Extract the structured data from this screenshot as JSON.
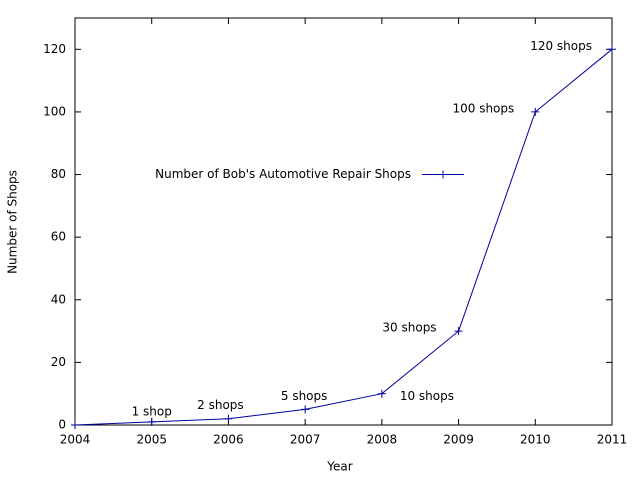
{
  "chart_data": {
    "type": "line",
    "x_label": "Year",
    "y_label": "Number of Shops",
    "x": [
      2004,
      2005,
      2006,
      2007,
      2008,
      2009,
      2010,
      2011
    ],
    "series": [
      {
        "name": "Number of Bob's Automotive Repair Shops",
        "color": "#0000a0",
        "values": [
          0,
          1,
          2,
          5,
          10,
          30,
          100,
          120
        ],
        "value_labels": [
          null,
          "1 shop",
          "2 shops",
          "5 shops",
          "10 shops",
          "30 shops",
          "100 shops",
          "120 shops"
        ]
      }
    ],
    "xlim": [
      2004,
      2011
    ],
    "xticks": [
      2004,
      2005,
      2006,
      2007,
      2008,
      2009,
      2010,
      2011
    ],
    "ylim": [
      0,
      130
    ],
    "yticks": [
      0,
      20,
      40,
      60,
      80,
      100,
      120
    ],
    "grid": false,
    "legend": "left"
  }
}
